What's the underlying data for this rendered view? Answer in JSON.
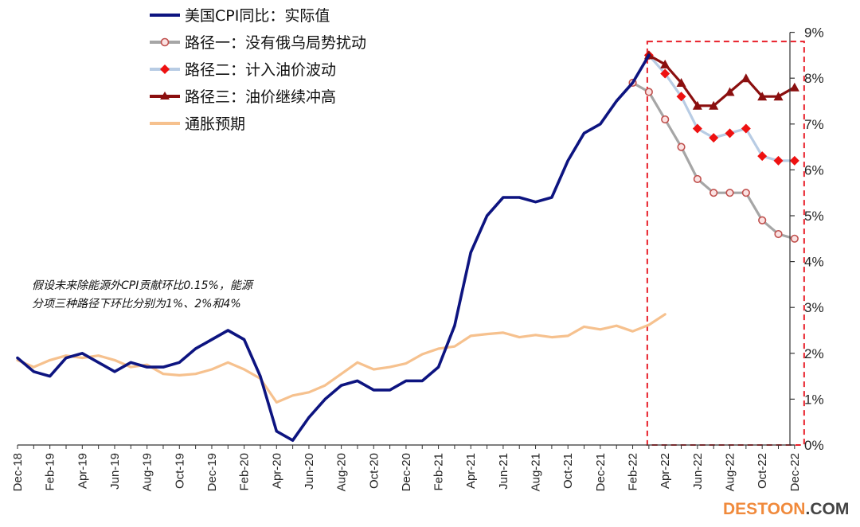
{
  "chart_data": {
    "type": "line",
    "title": "",
    "y_axis": {
      "position": "right",
      "min": 0,
      "max": 9,
      "step": 1,
      "unit": "%",
      "tick_labels": [
        "0%",
        "1%",
        "2%",
        "3%",
        "4%",
        "5%",
        "6%",
        "7%",
        "8%",
        "9%"
      ]
    },
    "x_tick_labels": [
      "Dec-18",
      "Feb-19",
      "Apr-19",
      "Jun-19",
      "Aug-19",
      "Oct-19",
      "Dec-19",
      "Feb-20",
      "Apr-20",
      "Jun-20",
      "Aug-20",
      "Oct-20",
      "Dec-20",
      "Feb-21",
      "Apr-21",
      "Jun-21",
      "Aug-21",
      "Oct-21",
      "Dec-21",
      "Feb-22",
      "Apr-22",
      "Jun-22",
      "Aug-22",
      "Oct-22",
      "Dec-22"
    ],
    "months": [
      "2018-12",
      "2019-01",
      "2019-02",
      "2019-03",
      "2019-04",
      "2019-05",
      "2019-06",
      "2019-07",
      "2019-08",
      "2019-09",
      "2019-10",
      "2019-11",
      "2019-12",
      "2020-01",
      "2020-02",
      "2020-03",
      "2020-04",
      "2020-05",
      "2020-06",
      "2020-07",
      "2020-08",
      "2020-09",
      "2020-10",
      "2020-11",
      "2020-12",
      "2021-01",
      "2021-02",
      "2021-03",
      "2021-04",
      "2021-05",
      "2021-06",
      "2021-07",
      "2021-08",
      "2021-09",
      "2021-10",
      "2021-11",
      "2021-12",
      "2022-01",
      "2022-02",
      "2022-03",
      "2022-04",
      "2022-05",
      "2022-06",
      "2022-07",
      "2022-08",
      "2022-09",
      "2022-10",
      "2022-11",
      "2022-12"
    ],
    "series": [
      {
        "name": "美国CPI同比：实际值",
        "color": "#0d1480",
        "marker": "none",
        "start_index": 0,
        "values": [
          1.9,
          1.6,
          1.5,
          1.9,
          2.0,
          1.8,
          1.6,
          1.8,
          1.7,
          1.7,
          1.8,
          2.1,
          2.3,
          2.5,
          2.3,
          1.5,
          0.3,
          0.1,
          0.6,
          1.0,
          1.3,
          1.4,
          1.2,
          1.2,
          1.4,
          1.4,
          1.7,
          2.6,
          4.2,
          5.0,
          5.4,
          5.4,
          5.3,
          5.4,
          6.2,
          6.8,
          7.0,
          7.5,
          7.9,
          8.5
        ]
      },
      {
        "name": "路径一：没有俄乌局势扰动",
        "color": "#a6a6a6",
        "marker": "circle",
        "start_index": 38,
        "values": [
          7.9,
          7.7,
          7.1,
          6.5,
          5.8,
          5.5,
          5.5,
          5.5,
          4.9,
          4.6,
          4.5
        ]
      },
      {
        "name": "路径二：计入油价波动",
        "color": "#b8cce4",
        "marker": "diamond",
        "start_index": 39,
        "values": [
          8.5,
          8.1,
          7.6,
          6.9,
          6.7,
          6.8,
          6.9,
          6.3,
          6.2,
          6.2
        ]
      },
      {
        "name": "路径三：油价继续冲高",
        "color": "#8b0f0f",
        "marker": "triangle",
        "start_index": 39,
        "values": [
          8.5,
          8.3,
          7.9,
          7.4,
          7.4,
          7.7,
          8.0,
          7.6,
          7.6,
          7.8
        ]
      },
      {
        "name": "通胀预期",
        "color": "#f6c18e",
        "marker": "none",
        "start_index": 0,
        "values": [
          1.85,
          1.7,
          1.85,
          1.95,
          1.9,
          1.95,
          1.85,
          1.7,
          1.75,
          1.55,
          1.52,
          1.55,
          1.65,
          1.8,
          1.65,
          1.45,
          0.93,
          1.08,
          1.15,
          1.3,
          1.55,
          1.8,
          1.65,
          1.7,
          1.78,
          1.98,
          2.1,
          2.15,
          2.38,
          2.42,
          2.45,
          2.35,
          2.4,
          2.35,
          2.38,
          2.58,
          2.52,
          2.6,
          2.48,
          2.62,
          2.85
        ]
      }
    ],
    "highlight_box": {
      "from_month": "2022-03",
      "to_month": "2022-12",
      "y_from": 0,
      "y_to": 8.8,
      "color": "#e8202a"
    },
    "annotation": [
      "假设未来除能源外CPI贡献环比0.15%，能源",
      "分项三种路径下环比分别为1%、2%和4%"
    ]
  },
  "watermark": {
    "part1": "DES",
    "part2": "TOON",
    "part3": ".COM"
  }
}
